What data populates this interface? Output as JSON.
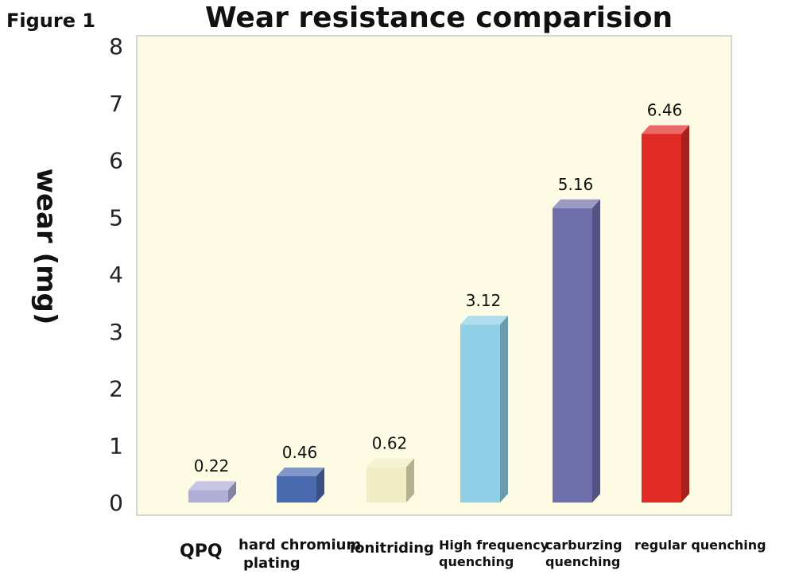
{
  "figure_label": "Figure 1",
  "chart_data": {
    "type": "bar",
    "title": "Wear resistance comparision",
    "ylabel": "wear (mg)",
    "xlabel": "",
    "ylim": [
      0,
      8
    ],
    "yticks": [
      "0",
      "1",
      "2",
      "3",
      "4",
      "5",
      "6",
      "7",
      "8"
    ],
    "grid": false,
    "categories": [
      "QPQ",
      "hard chromium plating",
      "ionitriding",
      "High frequency quenching",
      "carburzing quenching",
      "regular quenching"
    ],
    "category_lines": [
      [
        "QPQ"
      ],
      [
        "hard chromium",
        "plating"
      ],
      [
        "ionitriding"
      ],
      [
        "High frequency",
        "quenching"
      ],
      [
        "carburzing",
        "quenching"
      ],
      [
        "regular quenching"
      ]
    ],
    "values": [
      0.22,
      0.46,
      0.62,
      3.12,
      5.16,
      6.46
    ],
    "value_labels": [
      "0.22",
      "0.46",
      "0.62",
      "3.12",
      "5.16",
      "6.46"
    ],
    "colors": {
      "background": "#fdfbe3",
      "bars": [
        "#aeaed8",
        "#4a6ab0",
        "#f0ecc4",
        "#8fd0e6",
        "#6e6eaa",
        "#e02a24"
      ]
    }
  }
}
